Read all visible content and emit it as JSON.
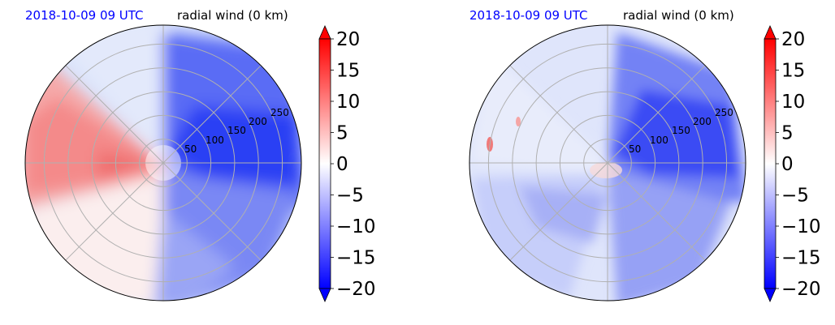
{
  "colors": {
    "negative": "#0000ff",
    "zero": "#ffffff",
    "positive": "#ff0000",
    "grid": "#b0b0b0",
    "title_date": "#0000ff"
  },
  "chart_data": [
    {
      "type": "heatmap",
      "projection": "polar",
      "title_left": "2018-10-09 09 UTC",
      "title_right": "radial wind (0 km)",
      "radial_ticks": [
        "50",
        "100",
        "150",
        "200",
        "250"
      ],
      "radial_range": [
        0,
        290
      ],
      "colorbar": {
        "ticks": [
          "20",
          "15",
          "10",
          "5",
          "0",
          "−5",
          "−10",
          "−15",
          "−20"
        ],
        "range": [
          -20,
          20
        ],
        "extend": "both"
      }
    },
    {
      "type": "heatmap",
      "projection": "polar",
      "title_left": "2018-10-09 09 UTC",
      "title_right": "radial wind (0 km)",
      "radial_ticks": [
        "50",
        "100",
        "150",
        "200",
        "250"
      ],
      "radial_range": [
        0,
        290
      ],
      "colorbar": {
        "ticks": [
          "20",
          "15",
          "10",
          "5",
          "0",
          "−5",
          "−10",
          "−15",
          "−20"
        ],
        "range": [
          -20,
          20
        ],
        "extend": "both"
      }
    }
  ]
}
